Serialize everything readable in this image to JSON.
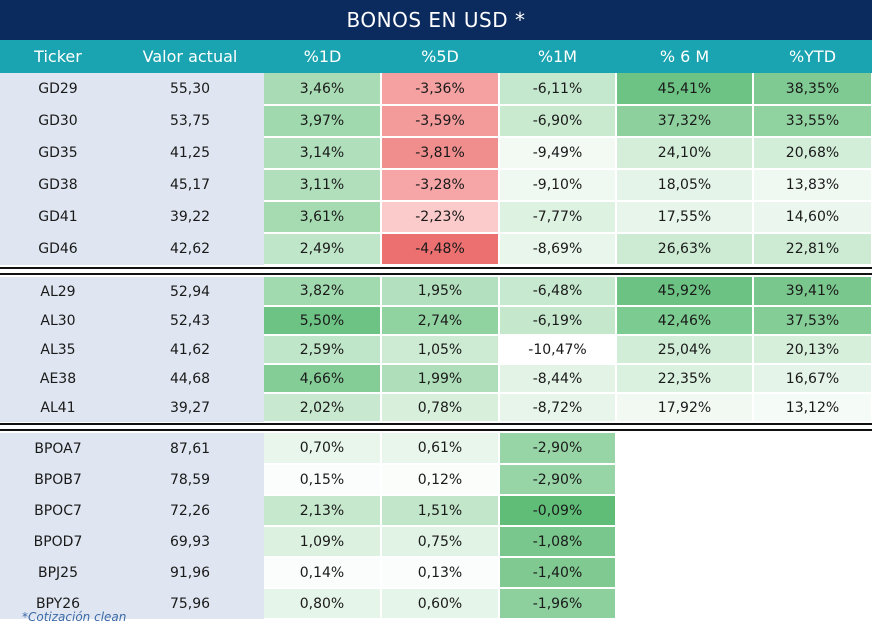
{
  "title": "BONOS EN USD *",
  "headers": [
    "Ticker",
    "Valor actual",
    "%1D",
    "%5D",
    "%1M",
    "% 6 M",
    "%YTD"
  ],
  "footnote": "*Cotización clean",
  "groups": [
    {
      "rows": [
        {
          "ticker": "GD29",
          "valor": "55,30",
          "d1": "3,46%",
          "d5": "-3,36%",
          "m1": "-6,11%",
          "m6": "45,41%",
          "ytd": "38,35%"
        },
        {
          "ticker": "GD30",
          "valor": "53,75",
          "d1": "3,97%",
          "d5": "-3,59%",
          "m1": "-6,90%",
          "m6": "37,32%",
          "ytd": "33,55%"
        },
        {
          "ticker": "GD35",
          "valor": "41,25",
          "d1": "3,14%",
          "d5": "-3,81%",
          "m1": "-9,49%",
          "m6": "24,10%",
          "ytd": "20,68%"
        },
        {
          "ticker": "GD38",
          "valor": "45,17",
          "d1": "3,11%",
          "d5": "-3,28%",
          "m1": "-9,10%",
          "m6": "18,05%",
          "ytd": "13,83%"
        },
        {
          "ticker": "GD41",
          "valor": "39,22",
          "d1": "3,61%",
          "d5": "-2,23%",
          "m1": "-7,77%",
          "m6": "17,55%",
          "ytd": "14,60%"
        },
        {
          "ticker": "GD46",
          "valor": "42,62",
          "d1": "2,49%",
          "d5": "-4,48%",
          "m1": "-8,69%",
          "m6": "26,63%",
          "ytd": "22,81%"
        }
      ],
      "colors": [
        [
          "#a9dcb4",
          "#f5a1a1",
          "#c4e8cd",
          "#6cc383",
          "#7fca92"
        ],
        [
          "#9fd9ad",
          "#f39a9a",
          "#caeacf",
          "#8dd09e",
          "#91d2a1"
        ],
        [
          "#b0dfbb",
          "#f08d8d",
          "#f3faf4",
          "#d4eed9",
          "#d3eed8"
        ],
        [
          "#b1dfbc",
          "#f6a6a6",
          "#eff8f1",
          "#e5f4e8",
          "#eff8f1"
        ],
        [
          "#a6dbb2",
          "#fbcaca",
          "#def2e2",
          "#e7f5ea",
          "#ebf7ee"
        ],
        [
          "#bfe6c8",
          "#ec7070",
          "#e8f6eb",
          "#cdebd3",
          "#cdebd3"
        ]
      ]
    },
    {
      "rows": [
        {
          "ticker": "AL29",
          "valor": "52,94",
          "d1": "3,82%",
          "d5": "1,95%",
          "m1": "-6,48%",
          "m6": "45,92%",
          "ytd": "39,41%"
        },
        {
          "ticker": "AL30",
          "valor": "52,43",
          "d1": "5,50%",
          "d5": "2,74%",
          "m1": "-6,19%",
          "m6": "42,46%",
          "ytd": "37,53%"
        },
        {
          "ticker": "AL35",
          "valor": "41,62",
          "d1": "2,59%",
          "d5": "1,05%",
          "m1": "-10,47%",
          "m6": "25,04%",
          "ytd": "20,13%"
        },
        {
          "ticker": "AE38",
          "valor": "44,68",
          "d1": "4,66%",
          "d5": "1,99%",
          "m1": "-8,44%",
          "m6": "22,35%",
          "ytd": "16,67%"
        },
        {
          "ticker": "AL41",
          "valor": "39,27",
          "d1": "2,02%",
          "d5": "0,78%",
          "m1": "-8,72%",
          "m6": "17,92%",
          "ytd": "13,12%"
        }
      ],
      "colors": [
        [
          "#a2daaf",
          "#b3e0be",
          "#c7e9cf",
          "#6bc282",
          "#79c78d"
        ],
        [
          "#6dc384",
          "#91d2a1",
          "#c5e8cd",
          "#7ccb90",
          "#85cd97"
        ],
        [
          "#bfe6c8",
          "#cdebd3",
          "#ffffff",
          "#d1edd7",
          "#d6efdb"
        ],
        [
          "#85cd97",
          "#afdfba",
          "#e3f4e7",
          "#daf1df",
          "#e5f4e8"
        ],
        [
          "#c8e9cf",
          "#d7efdb",
          "#e7f5ea",
          "#f2f9f3",
          "#f5fbf6"
        ]
      ]
    },
    {
      "rows": [
        {
          "ticker": "BPOA7",
          "valor": "87,61",
          "d1": "0,70%",
          "d5": "0,61%",
          "m1": "-2,90%",
          "m6": "",
          "ytd": ""
        },
        {
          "ticker": "BPOB7",
          "valor": "78,59",
          "d1": "0,15%",
          "d5": "0,12%",
          "m1": "-2,90%",
          "m6": "",
          "ytd": ""
        },
        {
          "ticker": "BPOC7",
          "valor": "72,26",
          "d1": "2,13%",
          "d5": "1,51%",
          "m1": "-0,09%",
          "m6": "",
          "ytd": ""
        },
        {
          "ticker": "BPOD7",
          "valor": "69,93",
          "d1": "1,09%",
          "d5": "0,75%",
          "m1": "-1,08%",
          "m6": "",
          "ytd": ""
        },
        {
          "ticker": "BPJ25",
          "valor": "91,96",
          "d1": "0,14%",
          "d5": "0,13%",
          "m1": "-1,40%",
          "m6": "",
          "ytd": ""
        },
        {
          "ticker": "BPY26",
          "valor": "75,96",
          "d1": "0,80%",
          "d5": "0,60%",
          "m1": "-1,96%",
          "m6": "",
          "ytd": ""
        }
      ],
      "colors": [
        [
          "#e8f6eb",
          "#e9f6ec",
          "#97d4a6",
          "#ffffff",
          "#ffffff"
        ],
        [
          "#fafdfb",
          "#fbfdfb",
          "#97d4a6",
          "#ffffff",
          "#ffffff"
        ],
        [
          "#c6e8cd",
          "#c1e6c9",
          "#5fbd78",
          "#ffffff",
          "#ffffff"
        ],
        [
          "#dcf1e0",
          "#e1f3e5",
          "#79c78d",
          "#ffffff",
          "#ffffff"
        ],
        [
          "#fafdfb",
          "#fafdfb",
          "#80ca92",
          "#ffffff",
          "#ffffff"
        ],
        [
          "#e6f5e9",
          "#e6f5e9",
          "#8dd09e",
          "#ffffff",
          "#ffffff"
        ]
      ]
    }
  ]
}
